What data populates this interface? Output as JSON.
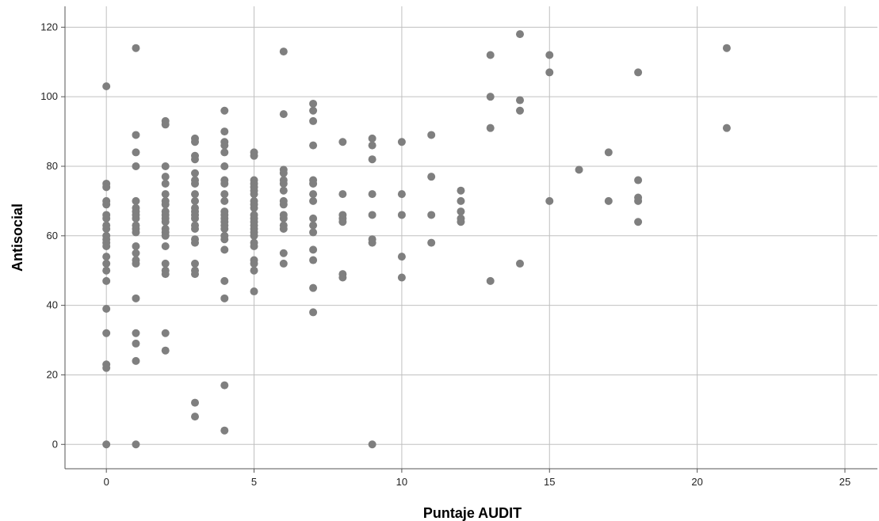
{
  "chart_data": {
    "type": "scatter",
    "xlabel": "Puntaje AUDIT",
    "ylabel": "Antisocial",
    "xlim": [
      -1.4,
      26.1
    ],
    "ylim": [
      -7,
      126
    ],
    "x_ticks": [
      0,
      5,
      10,
      15,
      20,
      25
    ],
    "y_ticks": [
      0,
      20,
      40,
      60,
      80,
      100,
      120
    ],
    "grid": true,
    "point_color": "#7f7f7f",
    "grid_color": "#c0c0c0",
    "points": [
      {
        "x": 0,
        "y": 103
      },
      {
        "x": 0,
        "y": 75
      },
      {
        "x": 0,
        "y": 74
      },
      {
        "x": 0,
        "y": 70
      },
      {
        "x": 0,
        "y": 69
      },
      {
        "x": 0,
        "y": 66
      },
      {
        "x": 0,
        "y": 65
      },
      {
        "x": 0,
        "y": 63
      },
      {
        "x": 0,
        "y": 62
      },
      {
        "x": 0,
        "y": 60
      },
      {
        "x": 0,
        "y": 59
      },
      {
        "x": 0,
        "y": 58
      },
      {
        "x": 0,
        "y": 57
      },
      {
        "x": 0,
        "y": 54
      },
      {
        "x": 0,
        "y": 52
      },
      {
        "x": 0,
        "y": 50
      },
      {
        "x": 0,
        "y": 47
      },
      {
        "x": 0,
        "y": 39
      },
      {
        "x": 0,
        "y": 32
      },
      {
        "x": 0,
        "y": 23
      },
      {
        "x": 0,
        "y": 22
      },
      {
        "x": 0,
        "y": 0
      },
      {
        "x": 1,
        "y": 114
      },
      {
        "x": 1,
        "y": 89
      },
      {
        "x": 1,
        "y": 84
      },
      {
        "x": 1,
        "y": 80
      },
      {
        "x": 1,
        "y": 70
      },
      {
        "x": 1,
        "y": 68
      },
      {
        "x": 1,
        "y": 67
      },
      {
        "x": 1,
        "y": 66
      },
      {
        "x": 1,
        "y": 65
      },
      {
        "x": 1,
        "y": 63
      },
      {
        "x": 1,
        "y": 62
      },
      {
        "x": 1,
        "y": 61
      },
      {
        "x": 1,
        "y": 57
      },
      {
        "x": 1,
        "y": 55
      },
      {
        "x": 1,
        "y": 53
      },
      {
        "x": 1,
        "y": 52
      },
      {
        "x": 1,
        "y": 42
      },
      {
        "x": 1,
        "y": 32
      },
      {
        "x": 1,
        "y": 29
      },
      {
        "x": 1,
        "y": 24
      },
      {
        "x": 1,
        "y": 0
      },
      {
        "x": 2,
        "y": 93
      },
      {
        "x": 2,
        "y": 92
      },
      {
        "x": 2,
        "y": 80
      },
      {
        "x": 2,
        "y": 77
      },
      {
        "x": 2,
        "y": 75
      },
      {
        "x": 2,
        "y": 72
      },
      {
        "x": 2,
        "y": 70
      },
      {
        "x": 2,
        "y": 69
      },
      {
        "x": 2,
        "y": 67
      },
      {
        "x": 2,
        "y": 66
      },
      {
        "x": 2,
        "y": 65
      },
      {
        "x": 2,
        "y": 64
      },
      {
        "x": 2,
        "y": 62
      },
      {
        "x": 2,
        "y": 61
      },
      {
        "x": 2,
        "y": 60
      },
      {
        "x": 2,
        "y": 57
      },
      {
        "x": 2,
        "y": 52
      },
      {
        "x": 2,
        "y": 50
      },
      {
        "x": 2,
        "y": 49
      },
      {
        "x": 2,
        "y": 32
      },
      {
        "x": 2,
        "y": 27
      },
      {
        "x": 3,
        "y": 88
      },
      {
        "x": 3,
        "y": 87
      },
      {
        "x": 3,
        "y": 83
      },
      {
        "x": 3,
        "y": 82
      },
      {
        "x": 3,
        "y": 78
      },
      {
        "x": 3,
        "y": 76
      },
      {
        "x": 3,
        "y": 75
      },
      {
        "x": 3,
        "y": 72
      },
      {
        "x": 3,
        "y": 70
      },
      {
        "x": 3,
        "y": 68
      },
      {
        "x": 3,
        "y": 67
      },
      {
        "x": 3,
        "y": 66
      },
      {
        "x": 3,
        "y": 65
      },
      {
        "x": 3,
        "y": 63
      },
      {
        "x": 3,
        "y": 62
      },
      {
        "x": 3,
        "y": 59
      },
      {
        "x": 3,
        "y": 58
      },
      {
        "x": 3,
        "y": 52
      },
      {
        "x": 3,
        "y": 50
      },
      {
        "x": 3,
        "y": 49
      },
      {
        "x": 3,
        "y": 12
      },
      {
        "x": 3,
        "y": 8
      },
      {
        "x": 4,
        "y": 96
      },
      {
        "x": 4,
        "y": 90
      },
      {
        "x": 4,
        "y": 87
      },
      {
        "x": 4,
        "y": 86
      },
      {
        "x": 4,
        "y": 84
      },
      {
        "x": 4,
        "y": 80
      },
      {
        "x": 4,
        "y": 76
      },
      {
        "x": 4,
        "y": 75
      },
      {
        "x": 4,
        "y": 72
      },
      {
        "x": 4,
        "y": 70
      },
      {
        "x": 4,
        "y": 67
      },
      {
        "x": 4,
        "y": 66
      },
      {
        "x": 4,
        "y": 65
      },
      {
        "x": 4,
        "y": 64
      },
      {
        "x": 4,
        "y": 63
      },
      {
        "x": 4,
        "y": 62
      },
      {
        "x": 4,
        "y": 60
      },
      {
        "x": 4,
        "y": 59
      },
      {
        "x": 4,
        "y": 56
      },
      {
        "x": 4,
        "y": 47
      },
      {
        "x": 4,
        "y": 42
      },
      {
        "x": 4,
        "y": 17
      },
      {
        "x": 4,
        "y": 4
      },
      {
        "x": 5,
        "y": 84
      },
      {
        "x": 5,
        "y": 83
      },
      {
        "x": 5,
        "y": 76
      },
      {
        "x": 5,
        "y": 75
      },
      {
        "x": 5,
        "y": 74
      },
      {
        "x": 5,
        "y": 73
      },
      {
        "x": 5,
        "y": 72
      },
      {
        "x": 5,
        "y": 70
      },
      {
        "x": 5,
        "y": 69
      },
      {
        "x": 5,
        "y": 68
      },
      {
        "x": 5,
        "y": 66
      },
      {
        "x": 5,
        "y": 65
      },
      {
        "x": 5,
        "y": 64
      },
      {
        "x": 5,
        "y": 63
      },
      {
        "x": 5,
        "y": 62
      },
      {
        "x": 5,
        "y": 61
      },
      {
        "x": 5,
        "y": 60
      },
      {
        "x": 5,
        "y": 58
      },
      {
        "x": 5,
        "y": 57
      },
      {
        "x": 5,
        "y": 53
      },
      {
        "x": 5,
        "y": 52
      },
      {
        "x": 5,
        "y": 50
      },
      {
        "x": 5,
        "y": 44
      },
      {
        "x": 6,
        "y": 113
      },
      {
        "x": 6,
        "y": 95
      },
      {
        "x": 6,
        "y": 79
      },
      {
        "x": 6,
        "y": 78
      },
      {
        "x": 6,
        "y": 76
      },
      {
        "x": 6,
        "y": 75
      },
      {
        "x": 6,
        "y": 73
      },
      {
        "x": 6,
        "y": 70
      },
      {
        "x": 6,
        "y": 69
      },
      {
        "x": 6,
        "y": 66
      },
      {
        "x": 6,
        "y": 65
      },
      {
        "x": 6,
        "y": 63
      },
      {
        "x": 6,
        "y": 62
      },
      {
        "x": 6,
        "y": 55
      },
      {
        "x": 6,
        "y": 52
      },
      {
        "x": 7,
        "y": 98
      },
      {
        "x": 7,
        "y": 96
      },
      {
        "x": 7,
        "y": 93
      },
      {
        "x": 7,
        "y": 86
      },
      {
        "x": 7,
        "y": 76
      },
      {
        "x": 7,
        "y": 75
      },
      {
        "x": 7,
        "y": 72
      },
      {
        "x": 7,
        "y": 70
      },
      {
        "x": 7,
        "y": 65
      },
      {
        "x": 7,
        "y": 63
      },
      {
        "x": 7,
        "y": 61
      },
      {
        "x": 7,
        "y": 56
      },
      {
        "x": 7,
        "y": 53
      },
      {
        "x": 7,
        "y": 45
      },
      {
        "x": 7,
        "y": 38
      },
      {
        "x": 8,
        "y": 87
      },
      {
        "x": 8,
        "y": 72
      },
      {
        "x": 8,
        "y": 66
      },
      {
        "x": 8,
        "y": 65
      },
      {
        "x": 8,
        "y": 64
      },
      {
        "x": 8,
        "y": 49
      },
      {
        "x": 8,
        "y": 48
      },
      {
        "x": 9,
        "y": 88
      },
      {
        "x": 9,
        "y": 86
      },
      {
        "x": 9,
        "y": 82
      },
      {
        "x": 9,
        "y": 72
      },
      {
        "x": 9,
        "y": 66
      },
      {
        "x": 9,
        "y": 59
      },
      {
        "x": 9,
        "y": 58
      },
      {
        "x": 9,
        "y": 0
      },
      {
        "x": 10,
        "y": 87
      },
      {
        "x": 10,
        "y": 72
      },
      {
        "x": 10,
        "y": 66
      },
      {
        "x": 10,
        "y": 54
      },
      {
        "x": 10,
        "y": 48
      },
      {
        "x": 11,
        "y": 89
      },
      {
        "x": 11,
        "y": 77
      },
      {
        "x": 11,
        "y": 66
      },
      {
        "x": 11,
        "y": 58
      },
      {
        "x": 12,
        "y": 73
      },
      {
        "x": 12,
        "y": 70
      },
      {
        "x": 12,
        "y": 67
      },
      {
        "x": 12,
        "y": 65
      },
      {
        "x": 12,
        "y": 64
      },
      {
        "x": 13,
        "y": 112
      },
      {
        "x": 13,
        "y": 100
      },
      {
        "x": 13,
        "y": 91
      },
      {
        "x": 13,
        "y": 47
      },
      {
        "x": 14,
        "y": 118
      },
      {
        "x": 14,
        "y": 99
      },
      {
        "x": 14,
        "y": 96
      },
      {
        "x": 14,
        "y": 52
      },
      {
        "x": 15,
        "y": 112
      },
      {
        "x": 15,
        "y": 107
      },
      {
        "x": 15,
        "y": 70
      },
      {
        "x": 16,
        "y": 79
      },
      {
        "x": 17,
        "y": 84
      },
      {
        "x": 17,
        "y": 70
      },
      {
        "x": 18,
        "y": 107
      },
      {
        "x": 18,
        "y": 76
      },
      {
        "x": 18,
        "y": 71
      },
      {
        "x": 18,
        "y": 70
      },
      {
        "x": 18,
        "y": 64
      },
      {
        "x": 21,
        "y": 114
      },
      {
        "x": 21,
        "y": 91
      }
    ]
  }
}
